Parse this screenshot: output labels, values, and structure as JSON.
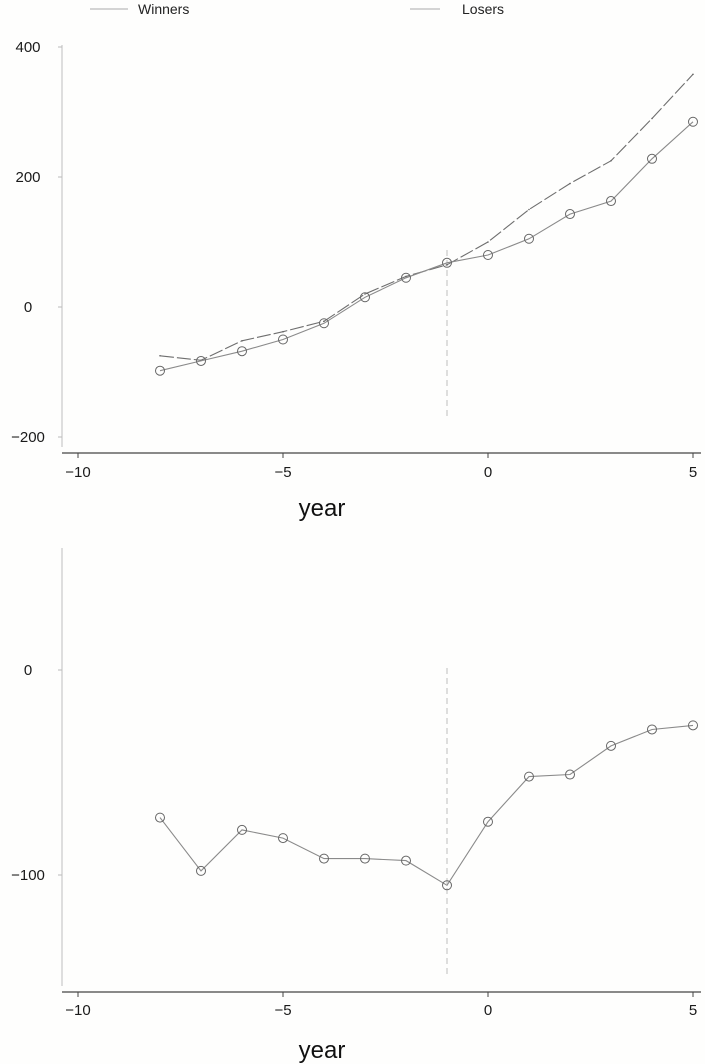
{
  "chart_data": [
    {
      "type": "line",
      "xlabel": "year",
      "ylabel": "",
      "xlim": [
        -10,
        5
      ],
      "ylim": [
        -200,
        400
      ],
      "xticks": [
        -10,
        -5,
        0,
        5
      ],
      "yticks": [
        -200,
        0,
        200,
        400
      ],
      "legend": {
        "placement": "top",
        "entries": [
          "Winners",
          "Losers"
        ]
      },
      "event_line_x": -1,
      "x": [
        -8,
        -7,
        -6,
        -5,
        -4,
        -3,
        -2,
        -1,
        0,
        1,
        2,
        3,
        4,
        5
      ],
      "series": [
        {
          "name": "Winners",
          "marker": "none",
          "values": [
            -75,
            -82,
            -52,
            -38,
            -22,
            20,
            47,
            65,
            100,
            150,
            190,
            225,
            290,
            358
          ]
        },
        {
          "name": "Losers",
          "marker": "circle",
          "values": [
            -98,
            -83,
            -68,
            -50,
            -25,
            15,
            45,
            68,
            80,
            105,
            143,
            163,
            228,
            285
          ]
        }
      ]
    },
    {
      "type": "line",
      "xlabel": "year",
      "ylabel": "",
      "xlim": [
        -10,
        5
      ],
      "ylim": [
        -160,
        60
      ],
      "xticks": [
        -10,
        -5,
        0,
        5
      ],
      "yticks": [
        -100,
        0
      ],
      "event_line_x": -1,
      "x": [
        -8,
        -7,
        -6,
        -5,
        -4,
        -3,
        -2,
        -1,
        0,
        1,
        2,
        3,
        4,
        5
      ],
      "series": [
        {
          "name": "",
          "marker": "circle",
          "values": [
            -72,
            -98,
            -78,
            -82,
            -92,
            -92,
            -93,
            -105,
            -74,
            -52,
            -51,
            -37,
            -29,
            -27
          ]
        }
      ]
    }
  ]
}
